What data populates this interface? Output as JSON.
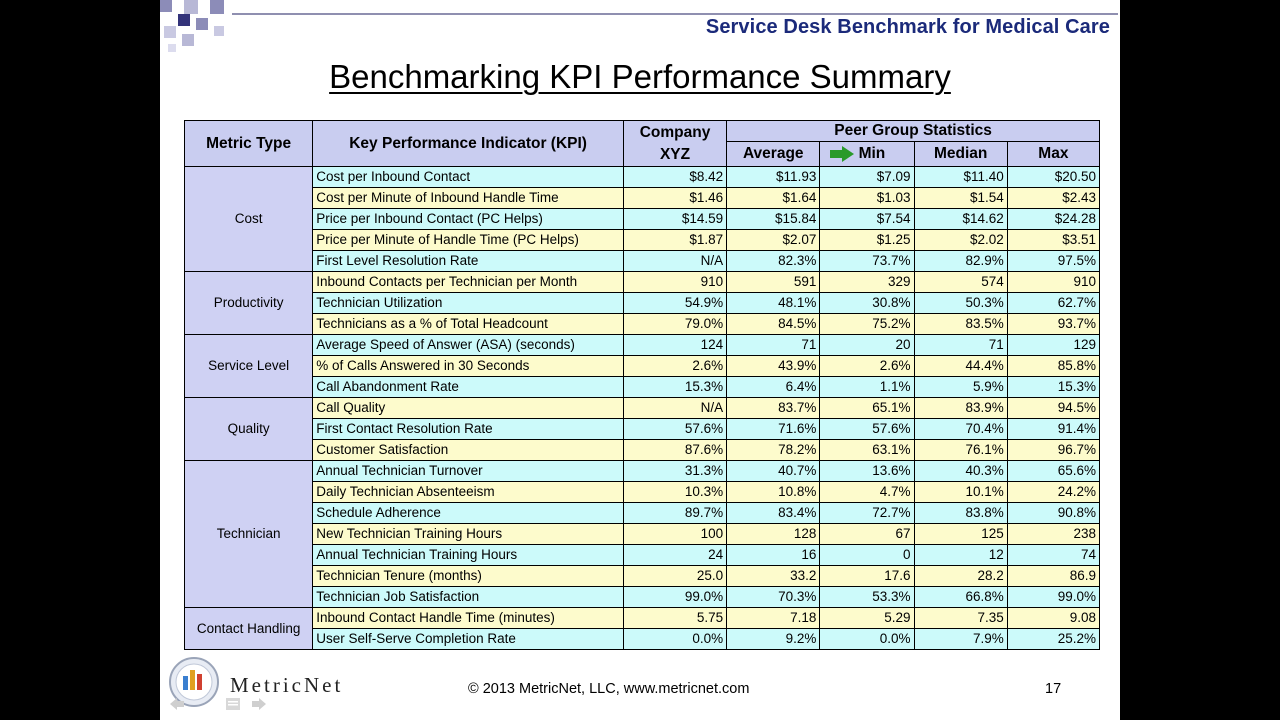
{
  "header": {
    "title": "Service Desk Benchmark for Medical Care"
  },
  "slide_title": "Benchmarking KPI Performance Summary",
  "table": {
    "headers": {
      "metric_type": "Metric Type",
      "kpi": "Key Performance Indicator (KPI)",
      "company_line1": "Company",
      "company_line2": "XYZ",
      "peer_group": "Peer Group Statistics",
      "average": "Average",
      "min": "Min",
      "median": "Median",
      "max": "Max"
    },
    "groups": [
      {
        "category": "Cost",
        "rows": [
          {
            "kpi": "Cost per Inbound Contact",
            "company": "$8.42",
            "average": "$11.93",
            "min": "$7.09",
            "median": "$11.40",
            "max": "$20.50"
          },
          {
            "kpi": "Cost per Minute of Inbound Handle Time",
            "company": "$1.46",
            "average": "$1.64",
            "min": "$1.03",
            "median": "$1.54",
            "max": "$2.43"
          },
          {
            "kpi": "Price per Inbound Contact (PC Helps)",
            "company": "$14.59",
            "average": "$15.84",
            "min": "$7.54",
            "median": "$14.62",
            "max": "$24.28"
          },
          {
            "kpi": "Price per Minute of Handle Time (PC Helps)",
            "company": "$1.87",
            "average": "$2.07",
            "min": "$1.25",
            "median": "$2.02",
            "max": "$3.51"
          },
          {
            "kpi": "First Level Resolution Rate",
            "company": "N/A",
            "average": "82.3%",
            "min": "73.7%",
            "median": "82.9%",
            "max": "97.5%"
          }
        ]
      },
      {
        "category": "Productivity",
        "rows": [
          {
            "kpi": "Inbound Contacts per Technician per Month",
            "company": "910",
            "average": "591",
            "min": "329",
            "median": "574",
            "max": "910"
          },
          {
            "kpi": "Technician Utilization",
            "company": "54.9%",
            "average": "48.1%",
            "min": "30.8%",
            "median": "50.3%",
            "max": "62.7%"
          },
          {
            "kpi": "Technicians as a % of Total Headcount",
            "company": "79.0%",
            "average": "84.5%",
            "min": "75.2%",
            "median": "83.5%",
            "max": "93.7%"
          }
        ]
      },
      {
        "category": "Service Level",
        "rows": [
          {
            "kpi": "Average Speed of Answer (ASA) (seconds)",
            "company": "124",
            "average": "71",
            "min": "20",
            "median": "71",
            "max": "129"
          },
          {
            "kpi": "% of Calls Answered in 30 Seconds",
            "company": "2.6%",
            "average": "43.9%",
            "min": "2.6%",
            "median": "44.4%",
            "max": "85.8%"
          },
          {
            "kpi": "Call Abandonment Rate",
            "company": "15.3%",
            "average": "6.4%",
            "min": "1.1%",
            "median": "5.9%",
            "max": "15.3%"
          }
        ]
      },
      {
        "category": "Quality",
        "rows": [
          {
            "kpi": "Call Quality",
            "company": "N/A",
            "average": "83.7%",
            "min": "65.1%",
            "median": "83.9%",
            "max": "94.5%"
          },
          {
            "kpi": "First Contact Resolution Rate",
            "company": "57.6%",
            "average": "71.6%",
            "min": "57.6%",
            "median": "70.4%",
            "max": "91.4%"
          },
          {
            "kpi": "Customer Satisfaction",
            "company": "87.6%",
            "average": "78.2%",
            "min": "63.1%",
            "median": "76.1%",
            "max": "96.7%"
          }
        ]
      },
      {
        "category": "Technician",
        "rows": [
          {
            "kpi": "Annual Technician Turnover",
            "company": "31.3%",
            "average": "40.7%",
            "min": "13.6%",
            "median": "40.3%",
            "max": "65.6%"
          },
          {
            "kpi": "Daily Technician Absenteeism",
            "company": "10.3%",
            "average": "10.8%",
            "min": "4.7%",
            "median": "10.1%",
            "max": "24.2%"
          },
          {
            "kpi": "Schedule Adherence",
            "company": "89.7%",
            "average": "83.4%",
            "min": "72.7%",
            "median": "83.8%",
            "max": "90.8%"
          },
          {
            "kpi": "New Technician Training Hours",
            "company": "100",
            "average": "128",
            "min": "67",
            "median": "125",
            "max": "238"
          },
          {
            "kpi": "Annual Technician Training Hours",
            "company": "24",
            "average": "16",
            "min": "0",
            "median": "12",
            "max": "74"
          },
          {
            "kpi": "Technician Tenure (months)",
            "company": "25.0",
            "average": "33.2",
            "min": "17.6",
            "median": "28.2",
            "max": "86.9"
          },
          {
            "kpi": "Technician Job Satisfaction",
            "company": "99.0%",
            "average": "70.3%",
            "min": "53.3%",
            "median": "66.8%",
            "max": "99.0%"
          }
        ]
      },
      {
        "category": "Contact Handling",
        "rows": [
          {
            "kpi": "Inbound Contact Handle Time (minutes)",
            "company": "5.75",
            "average": "7.18",
            "min": "5.29",
            "median": "7.35",
            "max": "9.08"
          },
          {
            "kpi": "User Self-Serve Completion Rate",
            "company": "0.0%",
            "average": "9.2%",
            "min": "0.0%",
            "median": "7.9%",
            "max": "25.2%"
          }
        ]
      }
    ]
  },
  "footer": {
    "copyright": "© 2013 MetricNet, LLC, www.metricnet.com",
    "page_number": "17"
  },
  "logo": {
    "text": "MetricNet"
  },
  "icons": {
    "decoration": "checker-squares-icon",
    "cursor": "green-arrow-cursor-icon",
    "logo": "bar-chart-logo-icon",
    "nav": [
      "nav-back-icon",
      "nav-menu-icon",
      "nav-forward-icon"
    ]
  },
  "colors": {
    "header_fill": "#c9cdf0",
    "category_fill": "#cfd1f3",
    "row_cyan": "#ccfafa",
    "row_yellow": "#fdfbcc",
    "title_blue": "#1b2a7a"
  }
}
